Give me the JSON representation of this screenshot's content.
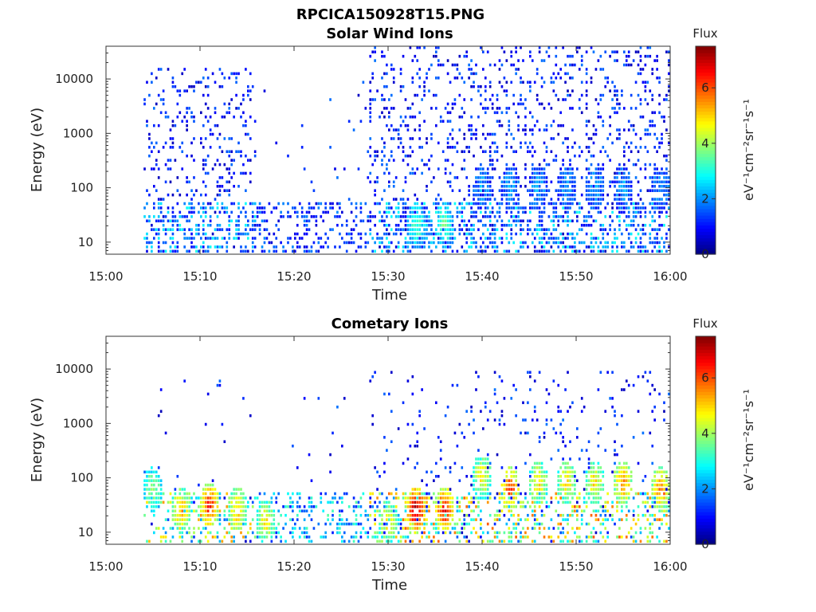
{
  "figure_title": "RPCICA150928T15.PNG",
  "colorbar": {
    "title": "Flux",
    "unit_label": "eV⁻¹cm⁻²sr⁻¹s⁻¹",
    "range": [
      0,
      7.5
    ],
    "ticks": [
      "0",
      "2",
      "4",
      "6"
    ],
    "colormap": "jet"
  },
  "chart_data": [
    {
      "type": "heatmap",
      "title": "Solar Wind Ions",
      "xlabel": "Time",
      "ylabel": "Energy (eV)",
      "y_scale": "log",
      "xlim": [
        "15:00",
        "16:00"
      ],
      "ylim": [
        6,
        40000
      ],
      "xticks": [
        "15:00",
        "15:10",
        "15:20",
        "15:30",
        "15:40",
        "15:50",
        "16:00"
      ],
      "yticks": [
        "10",
        "100",
        "1000",
        "10000"
      ],
      "activity": [
        {
          "start": "15:04",
          "end": "15:16",
          "low_energy_peak_flux": 3,
          "max_energy": 15000,
          "density": 0.35
        },
        {
          "start": "15:16",
          "end": "15:28",
          "low_energy_peak_flux": 2,
          "max_energy": 10000,
          "density": 0.03
        },
        {
          "start": "15:28",
          "end": "16:00",
          "low_energy_peak_flux": 3,
          "max_energy": 40000,
          "density": 0.4
        }
      ],
      "features": [
        {
          "time": "15:33",
          "energy": 20,
          "flux": 3.2
        },
        {
          "time": "15:36",
          "energy": 20,
          "flux": 3.2
        },
        {
          "time": "15:40",
          "energy": 100,
          "flux": 2
        },
        {
          "time": "15:43",
          "energy": 100,
          "flux": 2
        },
        {
          "time": "15:46",
          "energy": 100,
          "flux": 2
        },
        {
          "time": "15:49",
          "energy": 100,
          "flux": 2
        },
        {
          "time": "15:52",
          "energy": 100,
          "flux": 2
        },
        {
          "time": "15:55",
          "energy": 100,
          "flux": 2
        },
        {
          "time": "15:59",
          "energy": 100,
          "flux": 2
        }
      ]
    },
    {
      "type": "heatmap",
      "title": "Cometary Ions",
      "xlabel": "Time",
      "ylabel": "Energy (eV)",
      "y_scale": "log",
      "xlim": [
        "15:00",
        "16:00"
      ],
      "ylim": [
        6,
        40000
      ],
      "xticks": [
        "15:00",
        "15:10",
        "15:20",
        "15:30",
        "15:40",
        "15:50",
        "16:00"
      ],
      "yticks": [
        "10",
        "100",
        "1000",
        "10000"
      ],
      "activity": [
        {
          "start": "15:04",
          "end": "15:16",
          "low_energy_peak_flux": 5.5,
          "max_energy": 10000,
          "density": 0.05
        },
        {
          "start": "15:16",
          "end": "15:28",
          "low_energy_peak_flux": 3.5,
          "max_energy": 3000,
          "density": 0.02
        },
        {
          "start": "15:28",
          "end": "16:00",
          "low_energy_peak_flux": 6,
          "max_energy": 10000,
          "density": 0.15
        }
      ],
      "features": [
        {
          "time": "15:05",
          "energy": 60,
          "flux": 3.8
        },
        {
          "time": "15:08",
          "energy": 25,
          "flux": 5
        },
        {
          "time": "15:11",
          "energy": 30,
          "flux": 6
        },
        {
          "time": "15:14",
          "energy": 25,
          "flux": 5
        },
        {
          "time": "15:17",
          "energy": 15,
          "flux": 4.5
        },
        {
          "time": "15:30",
          "energy": 15,
          "flux": 4.5
        },
        {
          "time": "15:33",
          "energy": 25,
          "flux": 6.8
        },
        {
          "time": "15:36",
          "energy": 25,
          "flux": 6.2
        },
        {
          "time": "15:40",
          "energy": 100,
          "flux": 4.5
        },
        {
          "time": "15:43",
          "energy": 60,
          "flux": 5.8
        },
        {
          "time": "15:46",
          "energy": 80,
          "flux": 4.6
        },
        {
          "time": "15:49",
          "energy": 80,
          "flux": 4.6
        },
        {
          "time": "15:52",
          "energy": 80,
          "flux": 4.6
        },
        {
          "time": "15:55",
          "energy": 80,
          "flux": 5.3
        },
        {
          "time": "15:59",
          "energy": 60,
          "flux": 5.3
        }
      ]
    }
  ]
}
